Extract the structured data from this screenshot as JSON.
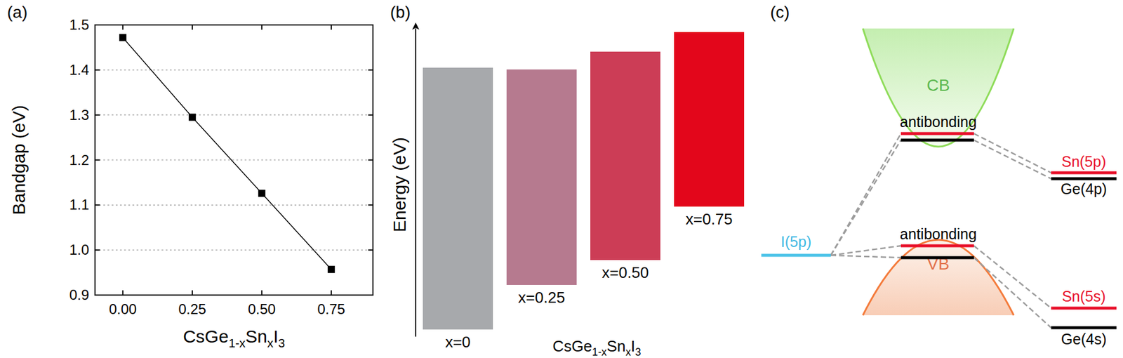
{
  "chart_data": [
    {
      "type": "line",
      "title": "(a)",
      "xlabel": "CsGe1-xSnxI3",
      "ylabel": "Bandgap (eV)",
      "x": [
        0,
        0.25,
        0.5,
        0.75
      ],
      "values": [
        1.472,
        1.295,
        1.126,
        0.957
      ],
      "xlim": [
        -0.1,
        0.9
      ],
      "ylim": [
        0.9,
        1.5
      ],
      "xticks": [
        {
          "value": 0,
          "label": "0.00"
        },
        0.25,
        {
          "value": 0.5,
          "label": "0.50"
        },
        0.75
      ],
      "yticks": [
        0.9,
        {
          "value": 1,
          "label": "1.0"
        },
        1.1,
        1.2,
        1.3,
        1.4,
        1.5
      ],
      "grid": true,
      "color": "#000000",
      "marker": "square",
      "line_style": "solid"
    },
    {
      "type": "floating_bar",
      "title": "(b)",
      "xlabel": "CsGe1-xSnxI3",
      "ylabel": "Energy (eV)",
      "categories": [
        "x=0",
        "x=0.25",
        "x=0.50",
        "x=0.75"
      ],
      "bottoms": [
        0,
        0.25,
        0.39,
        0.69
      ],
      "values": [
        1.47,
        1.46,
        1.56,
        1.67
      ],
      "colors": [
        "#a7a9ac",
        "#b67a8f",
        "#cc3d56",
        "#e3061b"
      ],
      "ylim": [
        -0.04,
        1.71
      ],
      "yticks": [],
      "tick_labels": false
    }
  ],
  "diagram": {
    "title": "(c)",
    "conduction_band": "CB",
    "valence_band": "VB",
    "cb_antibonding": "antibonding",
    "vb_antibonding": "antibonding",
    "iodine_level": "I(5p)",
    "sn_p_level": "Sn(5p)",
    "ge_p_level": "Ge(4p)",
    "sn_s_level": "Sn(5s)",
    "ge_s_level": "Ge(4s)"
  }
}
